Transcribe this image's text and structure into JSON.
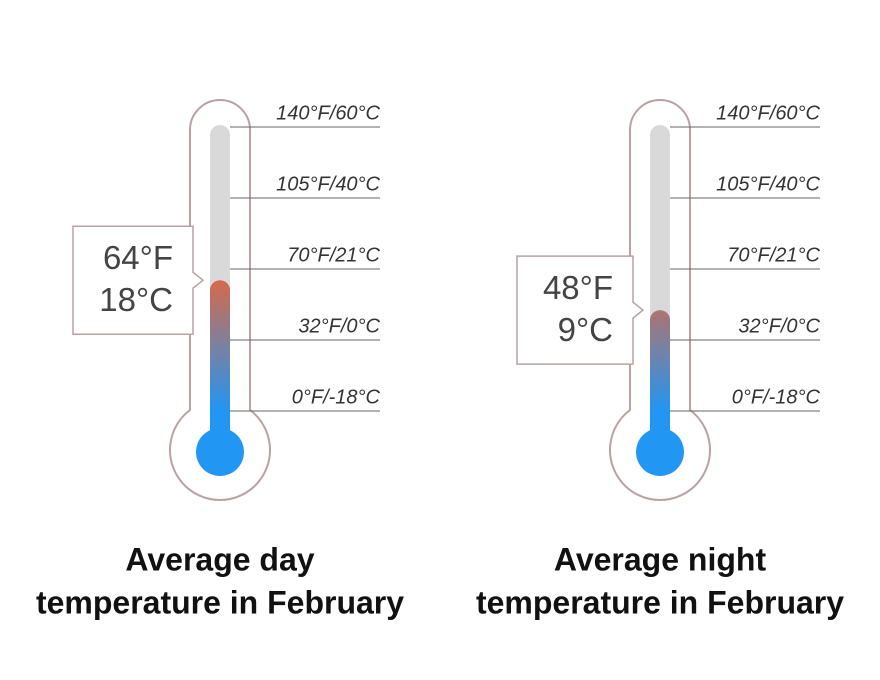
{
  "chart_data": [
    {
      "type": "thermometer",
      "title": [
        "Average day",
        "temperature in February"
      ],
      "value": 64,
      "value_label": {
        "f": "64°F",
        "c": "18°C"
      },
      "ylim": [
        0,
        140
      ],
      "yticks": [
        {
          "value": 0,
          "label": "0°F/-18°C"
        },
        {
          "value": 32,
          "label": "32°F/0°C"
        },
        {
          "value": 70,
          "label": "70°F/21°C"
        },
        {
          "value": 105,
          "label": "105°F/40°C"
        },
        {
          "value": 140,
          "label": "140°F/60°C"
        }
      ],
      "colors": {
        "low": "#2196f3",
        "high": "#e2673f",
        "tube": "#d9d9d9",
        "outline": "#b9a2a2"
      }
    },
    {
      "type": "thermometer",
      "title": [
        "Average night",
        "temperature in February"
      ],
      "value": 48,
      "value_label": {
        "f": "48°F",
        "c": "9°C"
      },
      "ylim": [
        0,
        140
      ],
      "yticks": [
        {
          "value": 0,
          "label": "0°F/-18°C"
        },
        {
          "value": 32,
          "label": "32°F/0°C"
        },
        {
          "value": 70,
          "label": "70°F/21°C"
        },
        {
          "value": 105,
          "label": "105°F/40°C"
        },
        {
          "value": 140,
          "label": "140°F/60°C"
        }
      ],
      "colors": {
        "low": "#2196f3",
        "high": "#e2673f",
        "tube": "#d9d9d9",
        "outline": "#b9a2a2"
      }
    }
  ]
}
